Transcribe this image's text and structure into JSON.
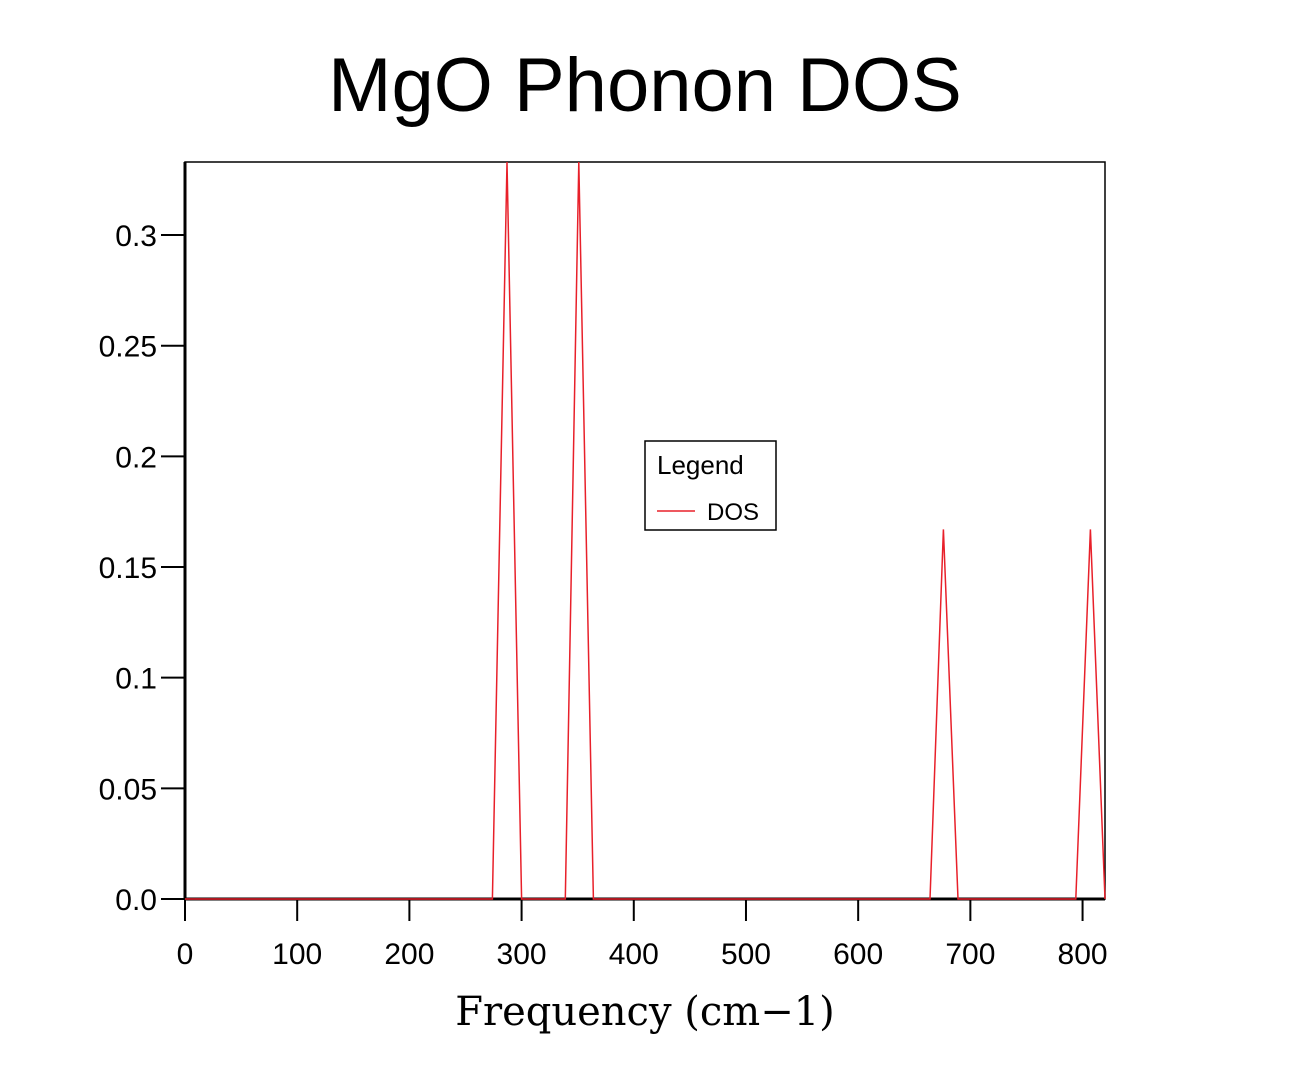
{
  "chart_data": {
    "type": "line",
    "title": "MgO Phonon DOS",
    "xlabel": "Frequency (cm−1)",
    "ylabel": "",
    "xlim": [
      0,
      820
    ],
    "ylim": [
      0,
      0.333
    ],
    "xticks": [
      0,
      100,
      200,
      300,
      400,
      500,
      600,
      700,
      800
    ],
    "xtick_labels": [
      "0",
      "100",
      "200",
      "300",
      "400",
      "500",
      "600",
      "700",
      "800"
    ],
    "yticks": [
      0,
      0.05,
      0.1,
      0.15,
      0.2,
      0.25,
      0.3
    ],
    "ytick_labels": [
      "0.0",
      "0.05",
      "0.1",
      "0.15",
      "0.2",
      "0.25",
      "0.3"
    ],
    "legend": {
      "title": "Legend",
      "placement": "center"
    },
    "series": [
      {
        "name": "DOS",
        "color": "#e8202a",
        "x": [
          0,
          274,
          287,
          300,
          339,
          351,
          364,
          664,
          676,
          689,
          794,
          807,
          820
        ],
        "y": [
          0,
          0,
          0.333,
          0,
          0,
          0.333,
          0,
          0,
          0.167,
          0,
          0,
          0.167,
          0
        ]
      }
    ]
  }
}
